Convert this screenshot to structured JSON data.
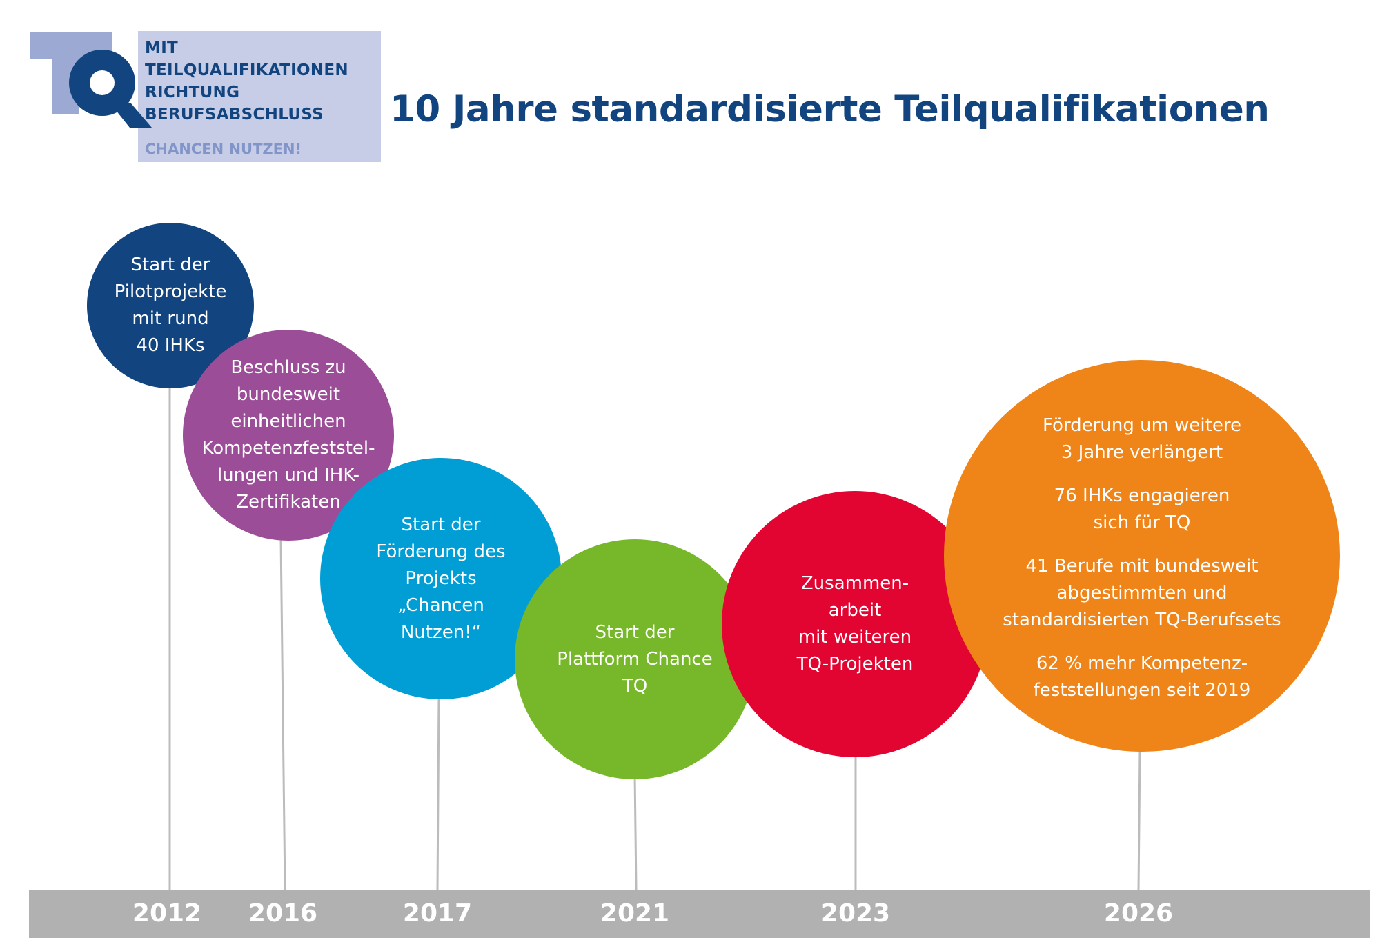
{
  "logo": {
    "lines": [
      "MIT",
      "TEILQUALIFIKATIONEN",
      "RICHTUNG",
      "BERUFSABSCHLUSS"
    ],
    "tagline": "CHANCEN NUTZEN!",
    "letters": "TQ",
    "colors": {
      "dark": "#12447f",
      "light": "#9ba9d3",
      "box": "#c7cde6"
    }
  },
  "title": "10 Jahre standardisierte Teilqualifikationen",
  "colors": {
    "title": "#12447f",
    "axis": "#b1b1b1",
    "stem": "#bcbcbc"
  },
  "milestones": [
    {
      "year": "2012",
      "color": "#12447f",
      "texts": [
        "Start der\nPilotprojekte\nmit rund\n40 IHKs"
      ]
    },
    {
      "year": "2016",
      "color": "#9b4d97",
      "texts": [
        "Beschluss zu\nbundesweit\neinheitlichen\nKompetenzfeststel-\nlungen und IHK-\nZertifikaten"
      ]
    },
    {
      "year": "2017",
      "color": "#009ed4",
      "texts": [
        "Start der\nFörderung des\nProjekts\n„Chancen\nNutzen!“"
      ]
    },
    {
      "year": "2021",
      "color": "#77b82a",
      "texts": [
        "Start der\nPlattform Chance\nTQ"
      ]
    },
    {
      "year": "2023",
      "color": "#e30531",
      "texts": [
        "Zusammen-\narbeit\nmit weiteren\nTQ-Projekten"
      ]
    },
    {
      "year": "2026",
      "color": "#ef8418",
      "texts": [
        "Förderung um weitere\n3 Jahre verlängert",
        "76 IHKs engagieren\nsich für TQ",
        "41 Berufe mit bundesweit\nabgestimmten und\nstandardisierten TQ-Berufssets",
        "62 % mehr Kompetenz-\nfeststellungen seit 2019"
      ]
    }
  ]
}
